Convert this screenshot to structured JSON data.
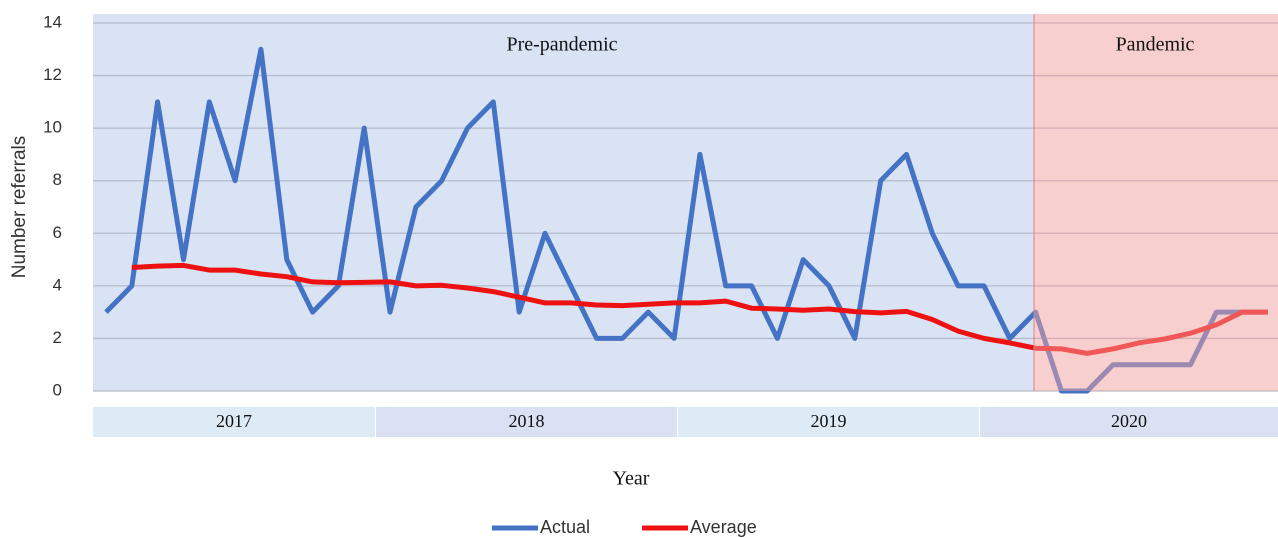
{
  "chart_data": {
    "type": "line",
    "y_label": "Number referrals",
    "x_label": "Year",
    "year_groups": [
      "2017",
      "2018",
      "2019",
      "2020"
    ],
    "regions": [
      "Pre-pandemic",
      "Pandemic"
    ],
    "categories": [
      null,
      null,
      null,
      null,
      null,
      null,
      null,
      null,
      null,
      null,
      null,
      null,
      null,
      null,
      null,
      null,
      null,
      null,
      null,
      null,
      null,
      null,
      null,
      null,
      null,
      null,
      null,
      null,
      null,
      null,
      null,
      null,
      null,
      null,
      null,
      null,
      null,
      null,
      null,
      null,
      null,
      null,
      null,
      null,
      null,
      null
    ],
    "series": [
      {
        "name": "Actual",
        "color": "#4472c4",
        "values": [
          3,
          4,
          11,
          5,
          11,
          8,
          13,
          5,
          3,
          4,
          10,
          3,
          7,
          8,
          10,
          11,
          3,
          6,
          4,
          2,
          2,
          3,
          2,
          9,
          4,
          4,
          2,
          5,
          4,
          2,
          8,
          9,
          6,
          4,
          4,
          2,
          3,
          0,
          0,
          1,
          1,
          1,
          1,
          3,
          3,
          3
        ]
      },
      {
        "name": "Average",
        "color": "#ee1111",
        "values": [
          null,
          4.7,
          4.75,
          4.78,
          4.6,
          4.6,
          4.45,
          4.35,
          4.15,
          4.12,
          4.13,
          4.15,
          4.0,
          4.02,
          3.92,
          3.78,
          3.57,
          3.35,
          3.35,
          3.27,
          3.25,
          3.3,
          3.35,
          3.35,
          3.42,
          3.15,
          3.12,
          3.07,
          3.12,
          3.02,
          2.97,
          3.03,
          2.72,
          2.28,
          2.0,
          1.83,
          1.63,
          1.6,
          1.43,
          1.6,
          1.83,
          1.98,
          2.2,
          2.52,
          3.0,
          3.0
        ]
      }
    ],
    "ylim": [
      0,
      14
    ],
    "yticks": [
      0,
      2,
      4,
      6,
      8,
      10,
      12,
      14
    ],
    "grid": true
  }
}
